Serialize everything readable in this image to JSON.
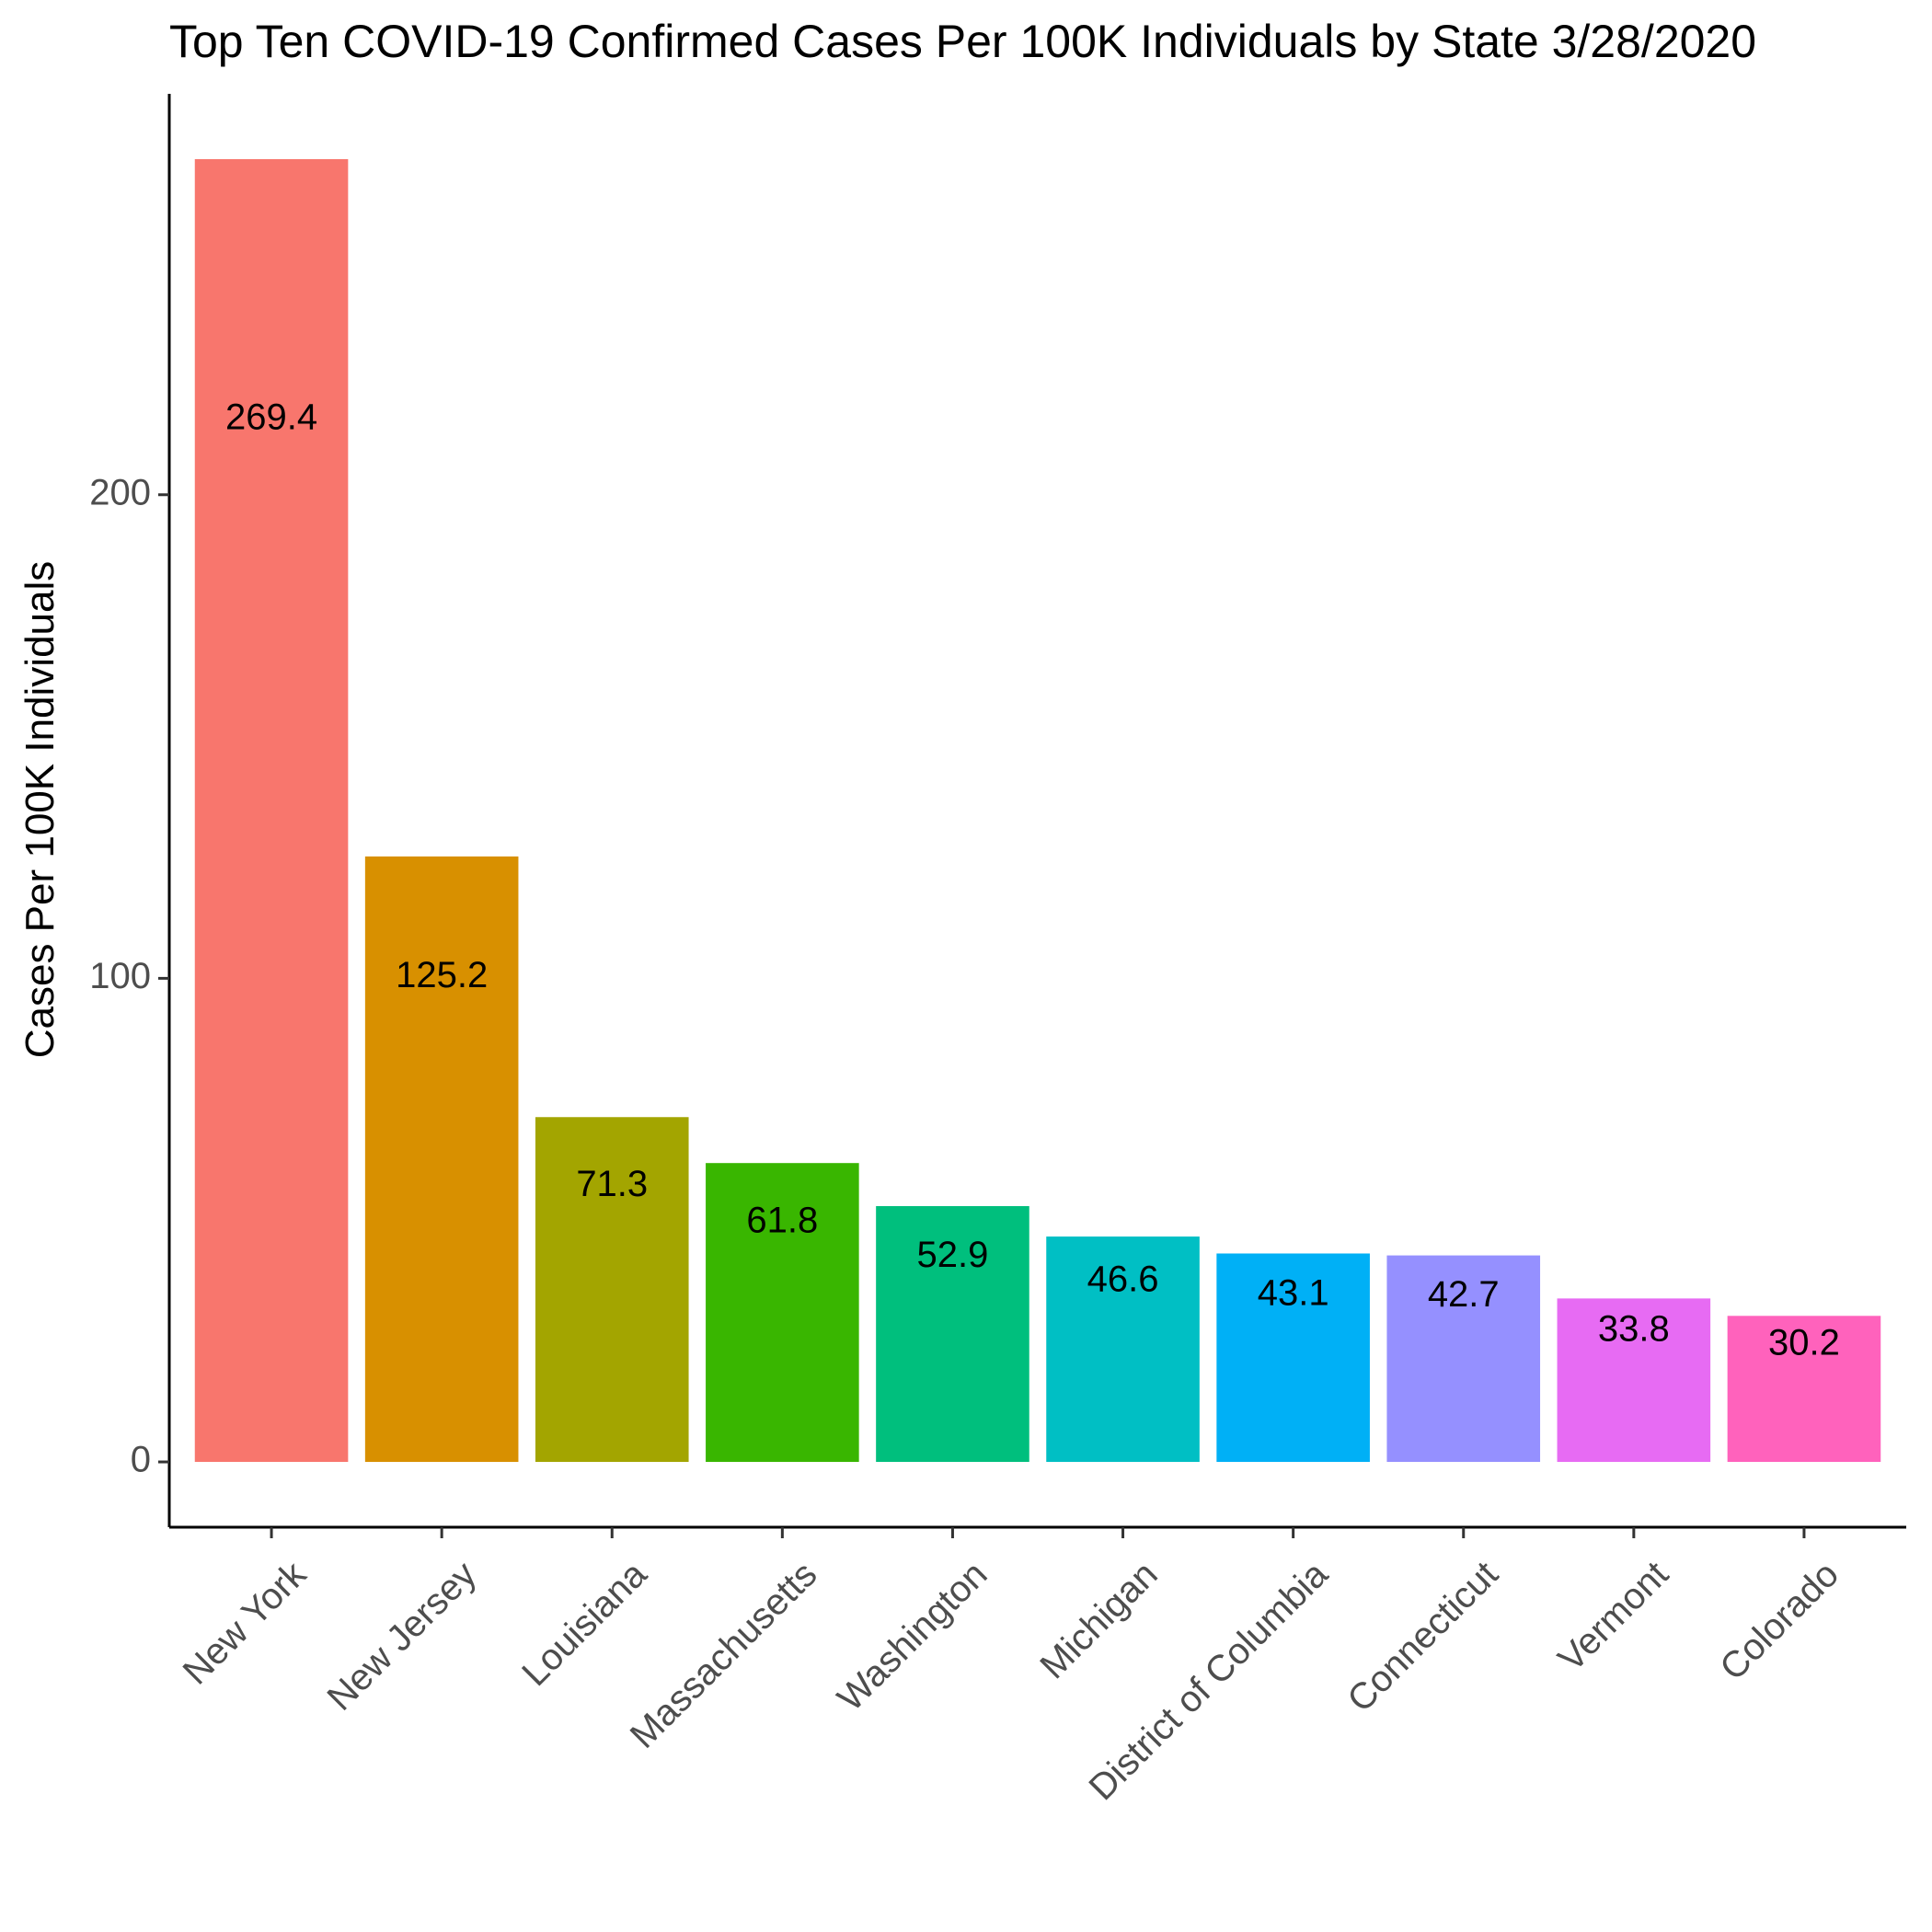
{
  "chart_data": {
    "type": "bar",
    "title": "Top Ten COVID-19 Confirmed Cases Per 100K Individuals by State 3/28/2020",
    "xlabel": "",
    "ylabel": "Cases Per 100K Individuals",
    "categories": [
      "New York",
      "New Jersey",
      "Louisiana",
      "Massachusetts",
      "Washington",
      "Michigan",
      "District of Columbia",
      "Connecticut",
      "Vermont",
      "Colorado"
    ],
    "values": [
      269.4,
      125.2,
      71.3,
      61.8,
      52.9,
      46.6,
      43.1,
      42.7,
      33.8,
      30.2
    ],
    "data_labels": [
      "269.4",
      "125.2",
      "71.3",
      "61.8",
      "52.9",
      "46.6",
      "43.1",
      "42.7",
      "33.8",
      "30.2"
    ],
    "colors": [
      "#F8766D",
      "#D89000",
      "#A3A500",
      "#39B600",
      "#00BF7D",
      "#00BFC4",
      "#00B0F6",
      "#9590FF",
      "#E76BF3",
      "#FF62BC"
    ],
    "yticks": [
      0,
      100,
      200
    ],
    "ytick_labels": [
      "0",
      "100",
      "200"
    ],
    "ylim": [
      -13.5,
      282.9
    ],
    "grid": false,
    "legend": "none"
  }
}
